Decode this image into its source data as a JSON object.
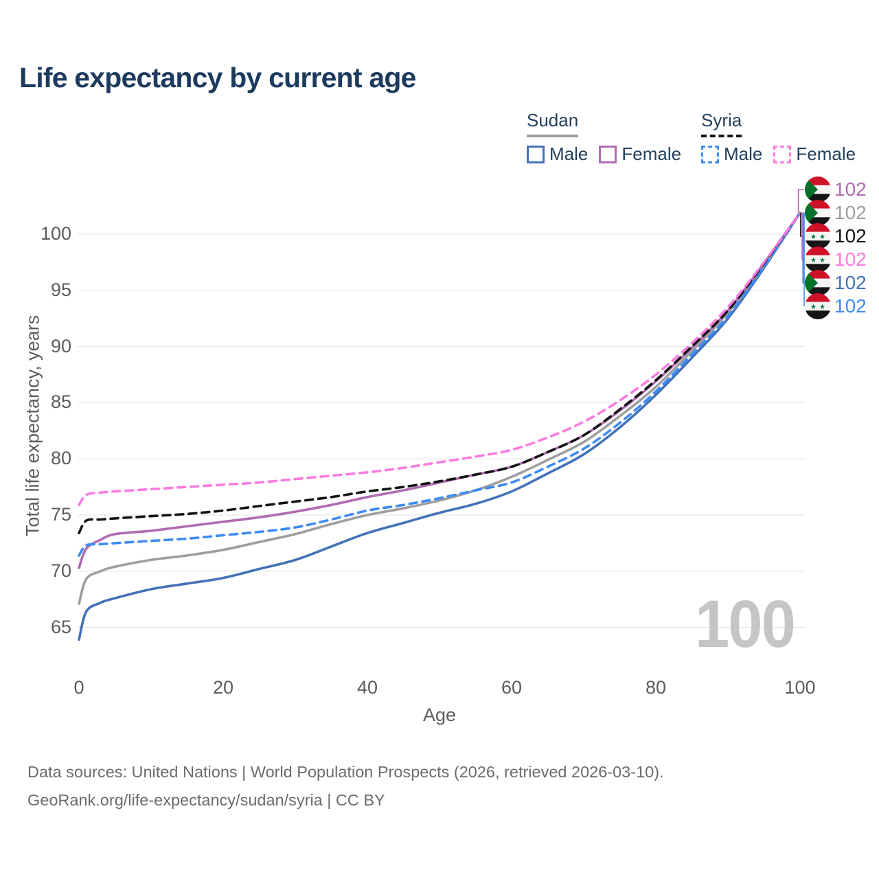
{
  "title": "Life expectancy by current age",
  "legend": {
    "groups": [
      {
        "name": "Sudan",
        "line_style": "solid",
        "items": [
          {
            "label": "Male"
          },
          {
            "label": "Female"
          }
        ]
      },
      {
        "name": "Syria",
        "line_style": "dashed",
        "items": [
          {
            "label": "Male"
          },
          {
            "label": "Female"
          }
        ]
      }
    ]
  },
  "colors": {
    "title_text": "#1d3a5f",
    "legend_text": "#23405c",
    "axis_text": "#5c5c5c",
    "grid": "#e8e8e8",
    "watermark": "#c5c5c5",
    "footer_text": "#6b6b6b",
    "sudan_underline": "#9e9e9e",
    "syria_underline": "#141414"
  },
  "chart_data": {
    "type": "line",
    "title": "Life expectancy by current age",
    "xlabel": "Age",
    "ylabel": "Total life expectancy, years",
    "x_ticks": [
      0,
      20,
      40,
      60,
      80,
      100
    ],
    "y_ticks": [
      65,
      70,
      75,
      80,
      85,
      90,
      95,
      100
    ],
    "xlim": [
      0,
      100
    ],
    "ylim": [
      63,
      103.5
    ],
    "grid": "horizontal",
    "legend_position": "top-right",
    "ages": [
      0,
      1,
      3,
      5,
      10,
      15,
      20,
      25,
      30,
      35,
      40,
      45,
      50,
      55,
      60,
      65,
      70,
      75,
      80,
      85,
      90,
      95,
      100
    ],
    "series": [
      {
        "name": "Sudan Male",
        "country": "Sudan",
        "sex": "Male",
        "color": "#4472b8",
        "dash": false,
        "end_value": 102,
        "values": [
          63.9,
          66.4,
          67.2,
          67.6,
          68.4,
          68.9,
          69.4,
          70.2,
          71.0,
          72.2,
          73.4,
          74.3,
          75.2,
          76.0,
          77.1,
          78.7,
          80.4,
          82.8,
          85.7,
          89.0,
          92.5,
          97.0,
          101.9
        ]
      },
      {
        "name": "Sudan Both sexes",
        "country": "Sudan",
        "sex": "Both",
        "color": "#9e9e9e",
        "dash": false,
        "end_value": 102,
        "values": [
          67.1,
          69.3,
          70.0,
          70.4,
          71.0,
          71.4,
          71.9,
          72.6,
          73.3,
          74.2,
          75.0,
          75.6,
          76.3,
          77.2,
          78.4,
          79.9,
          81.5,
          83.8,
          86.4,
          89.6,
          93.0,
          97.2,
          101.9
        ]
      },
      {
        "name": "Sudan Female",
        "country": "Sudan",
        "sex": "Female",
        "color": "#b06cb2",
        "dash": false,
        "end_value": 102,
        "values": [
          70.3,
          72.0,
          72.8,
          73.3,
          73.6,
          74.0,
          74.4,
          74.8,
          75.3,
          75.9,
          76.6,
          77.2,
          77.9,
          78.6,
          79.3,
          80.6,
          82.1,
          84.3,
          86.9,
          89.9,
          93.2,
          97.4,
          101.9
        ]
      },
      {
        "name": "Syria Male",
        "country": "Syria",
        "sex": "Male",
        "color": "#3e8bf4",
        "dash": true,
        "end_value": 102,
        "values": [
          71.4,
          72.3,
          72.4,
          72.5,
          72.7,
          72.9,
          73.2,
          73.5,
          73.9,
          74.6,
          75.4,
          75.9,
          76.5,
          77.2,
          77.9,
          79.3,
          80.9,
          83.2,
          86.0,
          89.3,
          92.7,
          97.1,
          101.9
        ]
      },
      {
        "name": "Syria Both sexes",
        "country": "Syria",
        "sex": "Both",
        "color": "#141414",
        "dash": true,
        "end_value": 102,
        "values": [
          73.4,
          74.5,
          74.6,
          74.7,
          74.9,
          75.1,
          75.4,
          75.8,
          76.2,
          76.6,
          77.1,
          77.5,
          78.0,
          78.6,
          79.3,
          80.6,
          82.1,
          84.4,
          87.0,
          90.0,
          93.2,
          97.4,
          101.9
        ]
      },
      {
        "name": "Syria Female",
        "country": "Syria",
        "sex": "Female",
        "color": "#fb7ce0",
        "dash": true,
        "end_value": 102,
        "values": [
          75.9,
          76.8,
          77.0,
          77.1,
          77.3,
          77.5,
          77.7,
          77.9,
          78.2,
          78.5,
          78.8,
          79.2,
          79.7,
          80.2,
          80.8,
          81.9,
          83.3,
          85.2,
          87.5,
          90.3,
          93.5,
          97.5,
          101.9
        ]
      }
    ]
  },
  "annotations": {
    "age_watermark": "100",
    "end_labels": [
      {
        "flag": "sudan",
        "text": "102",
        "color": "#b06cb2",
        "series": "Sudan Female"
      },
      {
        "flag": "sudan",
        "text": "102",
        "color": "#9e9e9e",
        "series": "Sudan Both sexes"
      },
      {
        "flag": "syria",
        "text": "102",
        "color": "#141414",
        "series": "Syria Both sexes"
      },
      {
        "flag": "syria",
        "text": "102",
        "color": "#fb7ce0",
        "series": "Syria Female"
      },
      {
        "flag": "sudan",
        "text": "102",
        "color": "#4472b8",
        "series": "Sudan Male"
      },
      {
        "flag": "syria",
        "text": "102",
        "color": "#3e8bf4",
        "series": "Syria Male"
      }
    ]
  },
  "footer": {
    "line1": "Data sources: United Nations | World Population Prospects (2026, retrieved 2026-03-10).",
    "line2": "GeoRank.org/life-expectancy/sudan/syria | CC BY"
  }
}
